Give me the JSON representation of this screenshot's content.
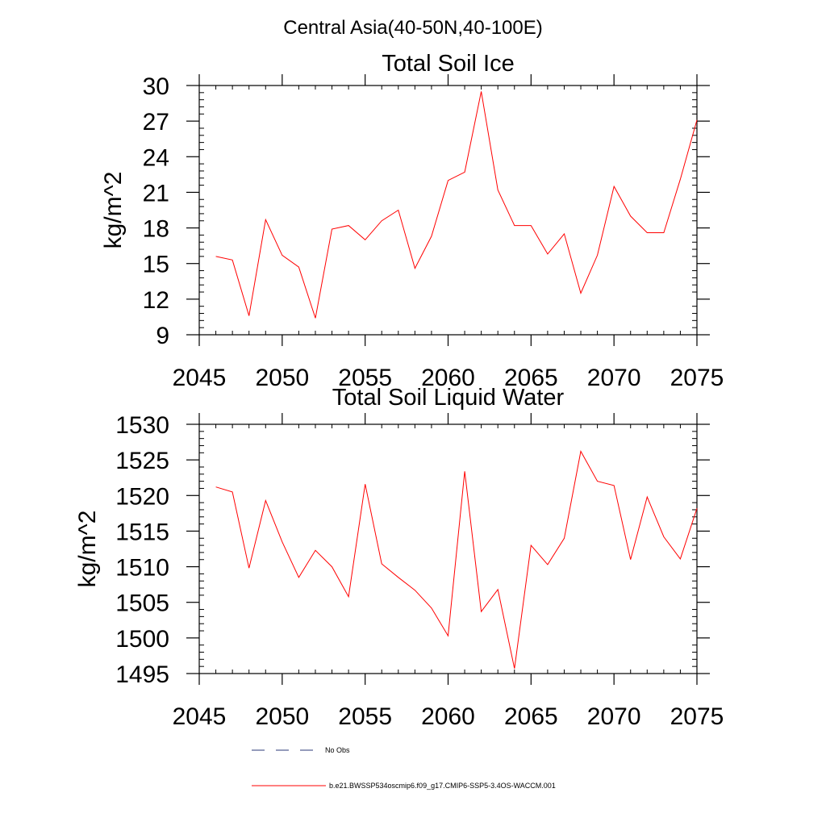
{
  "suptitle": "Central Asia(40-50N,40-100E)",
  "chart_data": [
    {
      "type": "line",
      "title": "Total Soil Ice",
      "xlabel": "",
      "ylabel": "kg/m^2",
      "xlim": [
        2045,
        2075
      ],
      "ylim": [
        9,
        30
      ],
      "xticks": [
        2045,
        2050,
        2055,
        2060,
        2065,
        2070,
        2075
      ],
      "yticks": [
        9,
        12,
        15,
        18,
        21,
        24,
        27,
        30
      ],
      "x": [
        2046,
        2047,
        2048,
        2049,
        2050,
        2051,
        2052,
        2053,
        2054,
        2055,
        2056,
        2057,
        2058,
        2059,
        2060,
        2061,
        2062,
        2063,
        2064,
        2065,
        2066,
        2067,
        2068,
        2069,
        2070,
        2071,
        2072,
        2073,
        2074,
        2075
      ],
      "series": [
        {
          "name": "b.e21.BWSSP534oscmip6.f09_g17.CMIP6-SSP5-3.4OS-WACCM.001",
          "color": "#ff0000",
          "values": [
            15.6,
            15.3,
            10.6,
            18.7,
            15.7,
            14.7,
            10.4,
            17.9,
            18.2,
            17.0,
            18.6,
            19.5,
            14.6,
            17.3,
            22.0,
            22.7,
            29.5,
            21.2,
            18.2,
            18.2,
            15.8,
            17.5,
            12.5,
            15.7,
            21.5,
            19.0,
            17.6,
            17.6,
            22.1,
            27.1
          ]
        }
      ]
    },
    {
      "type": "line",
      "title": "Total Soil Liquid Water",
      "xlabel": "",
      "ylabel": "kg/m^2",
      "xlim": [
        2045,
        2075
      ],
      "ylim": [
        1495,
        1530
      ],
      "xticks": [
        2045,
        2050,
        2055,
        2060,
        2065,
        2070,
        2075
      ],
      "yticks": [
        1495,
        1500,
        1505,
        1510,
        1515,
        1520,
        1525,
        1530
      ],
      "x": [
        2046,
        2047,
        2048,
        2049,
        2050,
        2051,
        2052,
        2053,
        2054,
        2055,
        2056,
        2057,
        2058,
        2059,
        2060,
        2061,
        2062,
        2063,
        2064,
        2065,
        2066,
        2067,
        2068,
        2069,
        2070,
        2071,
        2072,
        2073,
        2074,
        2075
      ],
      "series": [
        {
          "name": "b.e21.BWSSP534oscmip6.f09_g17.CMIP6-SSP5-3.4OS-WACCM.001",
          "color": "#ff0000",
          "values": [
            1521.2,
            1520.5,
            1509.8,
            1519.3,
            1513.5,
            1508.5,
            1512.3,
            1510.0,
            1505.8,
            1521.6,
            1510.4,
            1508.5,
            1506.7,
            1504.2,
            1500.3,
            1523.4,
            1503.7,
            1506.8,
            1495.7,
            1513.0,
            1510.3,
            1514.0,
            1526.2,
            1522.0,
            1521.4,
            1511.0,
            1519.8,
            1514.2,
            1511.1,
            1518.2
          ]
        }
      ]
    }
  ],
  "legend": [
    {
      "label": "No Obs",
      "style": "dashed",
      "color": "#2b3a7a"
    },
    {
      "label": "b.e21.BWSSP534oscmip6.f09_g17.CMIP6-SSP5-3.4OS-WACCM.001",
      "style": "solid",
      "color": "#ff0000"
    }
  ]
}
